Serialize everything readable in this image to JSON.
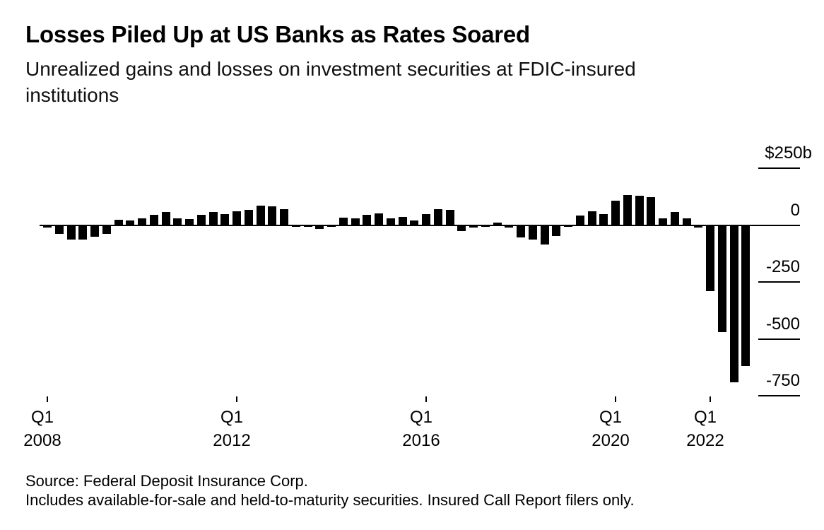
{
  "header": {
    "title": "Losses Piled Up at US Banks as Rates Soared",
    "subtitle_line1": "Unrealized gains and losses on investment securities at FDIC-insured",
    "subtitle_line2": "institutions"
  },
  "footer": {
    "source_line": "Source: Federal Deposit Insurance Corp.",
    "note_line": "Includes available-for-sale and held-to-maturity securities. Insured Call Report filers only."
  },
  "chart_data": {
    "type": "bar",
    "title": "Losses Piled Up at US Banks as Rates Soared",
    "subtitle": "Unrealized gains and losses on investment securities at FDIC-insured institutions",
    "unit": "billions of US dollars",
    "bar_color": "#000000",
    "background_color": "#ffffff",
    "grid": "right-side tick stubs only",
    "legend": "none",
    "ylim": [
      -780,
      260
    ],
    "y_axis": {
      "side": "right",
      "labels": [
        "$250b",
        "0",
        "-250",
        "-500",
        "-750"
      ],
      "values": [
        250,
        0,
        -250,
        -500,
        -750
      ]
    },
    "x_axis": {
      "ticks": [
        {
          "index": 0,
          "line1": "Q1",
          "line2": "2008"
        },
        {
          "index": 16,
          "line1": "Q1",
          "line2": "2012"
        },
        {
          "index": 32,
          "line1": "Q1",
          "line2": "2016"
        },
        {
          "index": 48,
          "line1": "Q1",
          "line2": "2020"
        },
        {
          "index": 56,
          "line1": "Q1",
          "line2": "2022"
        }
      ]
    },
    "categories": [
      "Q1 2008",
      "Q2 2008",
      "Q3 2008",
      "Q4 2008",
      "Q1 2009",
      "Q2 2009",
      "Q3 2009",
      "Q4 2009",
      "Q1 2010",
      "Q2 2010",
      "Q3 2010",
      "Q4 2010",
      "Q1 2011",
      "Q2 2011",
      "Q3 2011",
      "Q4 2011",
      "Q1 2012",
      "Q2 2012",
      "Q3 2012",
      "Q4 2012",
      "Q1 2013",
      "Q2 2013",
      "Q3 2013",
      "Q4 2013",
      "Q1 2014",
      "Q2 2014",
      "Q3 2014",
      "Q4 2014",
      "Q1 2015",
      "Q2 2015",
      "Q3 2015",
      "Q4 2015",
      "Q1 2016",
      "Q2 2016",
      "Q3 2016",
      "Q4 2016",
      "Q1 2017",
      "Q2 2017",
      "Q3 2017",
      "Q4 2017",
      "Q1 2018",
      "Q2 2018",
      "Q3 2018",
      "Q4 2018",
      "Q1 2019",
      "Q2 2019",
      "Q3 2019",
      "Q4 2019",
      "Q1 2020",
      "Q2 2020",
      "Q3 2020",
      "Q4 2020",
      "Q1 2021",
      "Q2 2021",
      "Q3 2021",
      "Q4 2021",
      "Q1 2022",
      "Q2 2022",
      "Q3 2022",
      "Q4 2022"
    ],
    "values": [
      -12,
      -40,
      -65,
      -65,
      -52,
      -40,
      22,
      19,
      29,
      46,
      58,
      29,
      25,
      46,
      56,
      48,
      62,
      68,
      86,
      83,
      71,
      -9,
      -9,
      -17,
      -9,
      34,
      28,
      46,
      52,
      31,
      37,
      19,
      49,
      71,
      68,
      -25,
      -12,
      -9,
      12,
      -12,
      -55,
      -65,
      -86,
      -49,
      -9,
      43,
      62,
      49,
      108,
      133,
      130,
      123,
      31,
      59,
      31,
      -12,
      -290,
      -469,
      -690,
      -620
    ]
  }
}
